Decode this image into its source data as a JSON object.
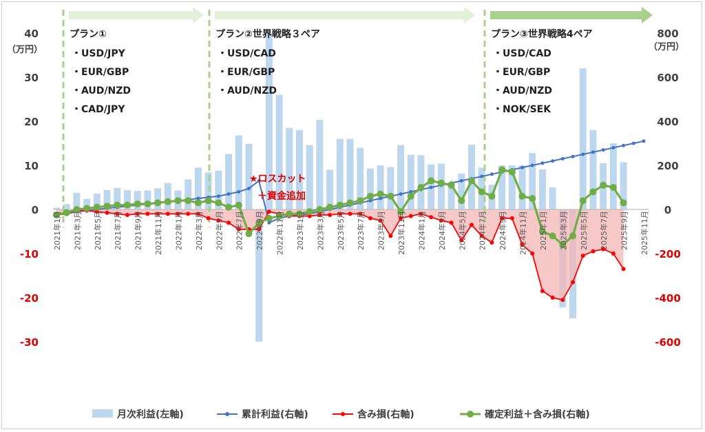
{
  "chart_data": {
    "type": "bar+line",
    "grid": false,
    "legend_position": "bottom",
    "left_axis": {
      "ylim": [
        -30,
        40
      ],
      "ticks": [
        "40",
        "30",
        "20",
        "10",
        "0",
        "-10",
        "-20",
        "-30"
      ],
      "unit": "（万円）"
    },
    "right_axis": {
      "ylim": [
        -600,
        800
      ],
      "ticks": [
        "800",
        "600",
        "400",
        "200",
        "0",
        "-200",
        "-400",
        "-600"
      ],
      "unit": "（万円）"
    },
    "x_tick_labels": [
      "2021年1月",
      "2021年3月",
      "2021年5月",
      "2021年7月",
      "2021年9月",
      "2021年11月",
      "2022年1月",
      "2022年3月",
      "2022年5月",
      "2022年7月",
      "2022年9月",
      "2022年11月",
      "2023年1月",
      "2023年3月",
      "2023年5月",
      "2023年7月",
      "2023年9月",
      "2023年11月",
      "2024年1月",
      "2024年3月",
      "2024年5月",
      "2024年7月",
      "2024年9月",
      "2024年11月",
      "2025年1月",
      "2025年3月",
      "2025年5月",
      "2025年7月",
      "2025年9月",
      "2025年11月"
    ],
    "months_count": 59,
    "series": [
      {
        "name": "月次利益(左軸)",
        "axis": "left",
        "kind": "bar",
        "color": "#bdd7ee",
        "values": [
          0.4,
          1.2,
          3.8,
          2.4,
          3.6,
          4.4,
          4.9,
          4.4,
          4.2,
          4.3,
          4.8,
          6.0,
          4.3,
          6.8,
          9.5,
          8.4,
          8.8,
          12.6,
          16.8,
          14.9,
          -30,
          40,
          26.0,
          18.5,
          18.0,
          14.6,
          20.3,
          9.0,
          16.0,
          16.0,
          14.0,
          9.3,
          10.0,
          9.6,
          14.6,
          12.4,
          12.3,
          10.2,
          10.4,
          6.1,
          8.1,
          14.7,
          9.5,
          5.6,
          10.0,
          10.0,
          10.0,
          12.8,
          9.1,
          5.0,
          -22.2,
          -24.7,
          32.0,
          18.0,
          10.5,
          15.0,
          10.7,
          null,
          null
        ]
      },
      {
        "name": "累計利益(右軸)",
        "axis": "right",
        "kind": "line",
        "color": "#4472c4",
        "values": [
          -25,
          -20,
          -10,
          -5,
          0,
          5,
          10,
          15,
          20,
          25,
          30,
          35,
          40,
          45,
          50,
          55,
          60,
          70,
          80,
          95,
          130,
          -60,
          -40,
          -30,
          -25,
          -20,
          -10,
          0,
          10,
          20,
          30,
          40,
          50,
          60,
          70,
          80,
          90,
          100,
          110,
          120,
          130,
          140,
          150,
          160,
          170,
          180,
          190,
          200,
          210,
          220,
          230,
          240,
          250,
          260,
          270,
          280,
          290,
          300,
          310
        ]
      },
      {
        "name": "含み損(右軸)",
        "axis": "right",
        "kind": "line",
        "color": "#ff0000",
        "values": [
          -25,
          -20,
          -5,
          -5,
          -10,
          -15,
          -20,
          -25,
          -20,
          -20,
          -20,
          -20,
          -20,
          -20,
          -20,
          -40,
          -50,
          -60,
          -90,
          -90,
          -90,
          -10,
          -20,
          -30,
          -30,
          -30,
          -25,
          -25,
          -20,
          -20,
          -20,
          -40,
          -50,
          -120,
          -40,
          -30,
          -20,
          -35,
          -50,
          -60,
          -140,
          -70,
          -120,
          -150,
          -40,
          -40,
          -160,
          -200,
          -370,
          -400,
          -410,
          -330,
          -210,
          -190,
          -180,
          -200,
          -270,
          null,
          null
        ]
      },
      {
        "name": "確定利益＋含み損(右軸)",
        "axis": "right",
        "kind": "line",
        "color": "#70ad47",
        "values": [
          -25,
          -15,
          0,
          5,
          10,
          15,
          20,
          20,
          25,
          25,
          30,
          35,
          40,
          40,
          30,
          40,
          30,
          10,
          20,
          -110,
          -60,
          -40,
          -30,
          -20,
          -20,
          -10,
          0,
          10,
          20,
          30,
          40,
          60,
          70,
          60,
          -10,
          60,
          100,
          130,
          120,
          110,
          40,
          130,
          80,
          60,
          180,
          170,
          60,
          50,
          -100,
          -120,
          -160,
          -120,
          40,
          80,
          110,
          100,
          30,
          null,
          null
        ]
      }
    ],
    "annotations": {
      "plan1_title": "プラン①",
      "plan1_pairs": [
        "・USD/JPY",
        "・EUR/GBP",
        "・AUD/NZD",
        "・CAD/JPY"
      ],
      "plan2_title": "プラン②世界戦略３ペア",
      "plan2_pairs": [
        "・USD/CAD",
        "・EUR/GBP",
        "・AUD/NZD"
      ],
      "plan3_title": "プラン③世界戦略4ペア",
      "plan3_pairs": [
        "・USD/CAD",
        "・EUR/GBP",
        "・AUD/NZD",
        "・NOK/SEK"
      ],
      "losscut": "★ロスカット",
      "fund_add": "＋資金追加"
    },
    "colors": {
      "left_axis_text": "#404040",
      "negative_text": "#e00000",
      "arrow": "#e2f0d9",
      "arrow_dark": "#a9d18e",
      "divider": "#a9d18e"
    }
  }
}
